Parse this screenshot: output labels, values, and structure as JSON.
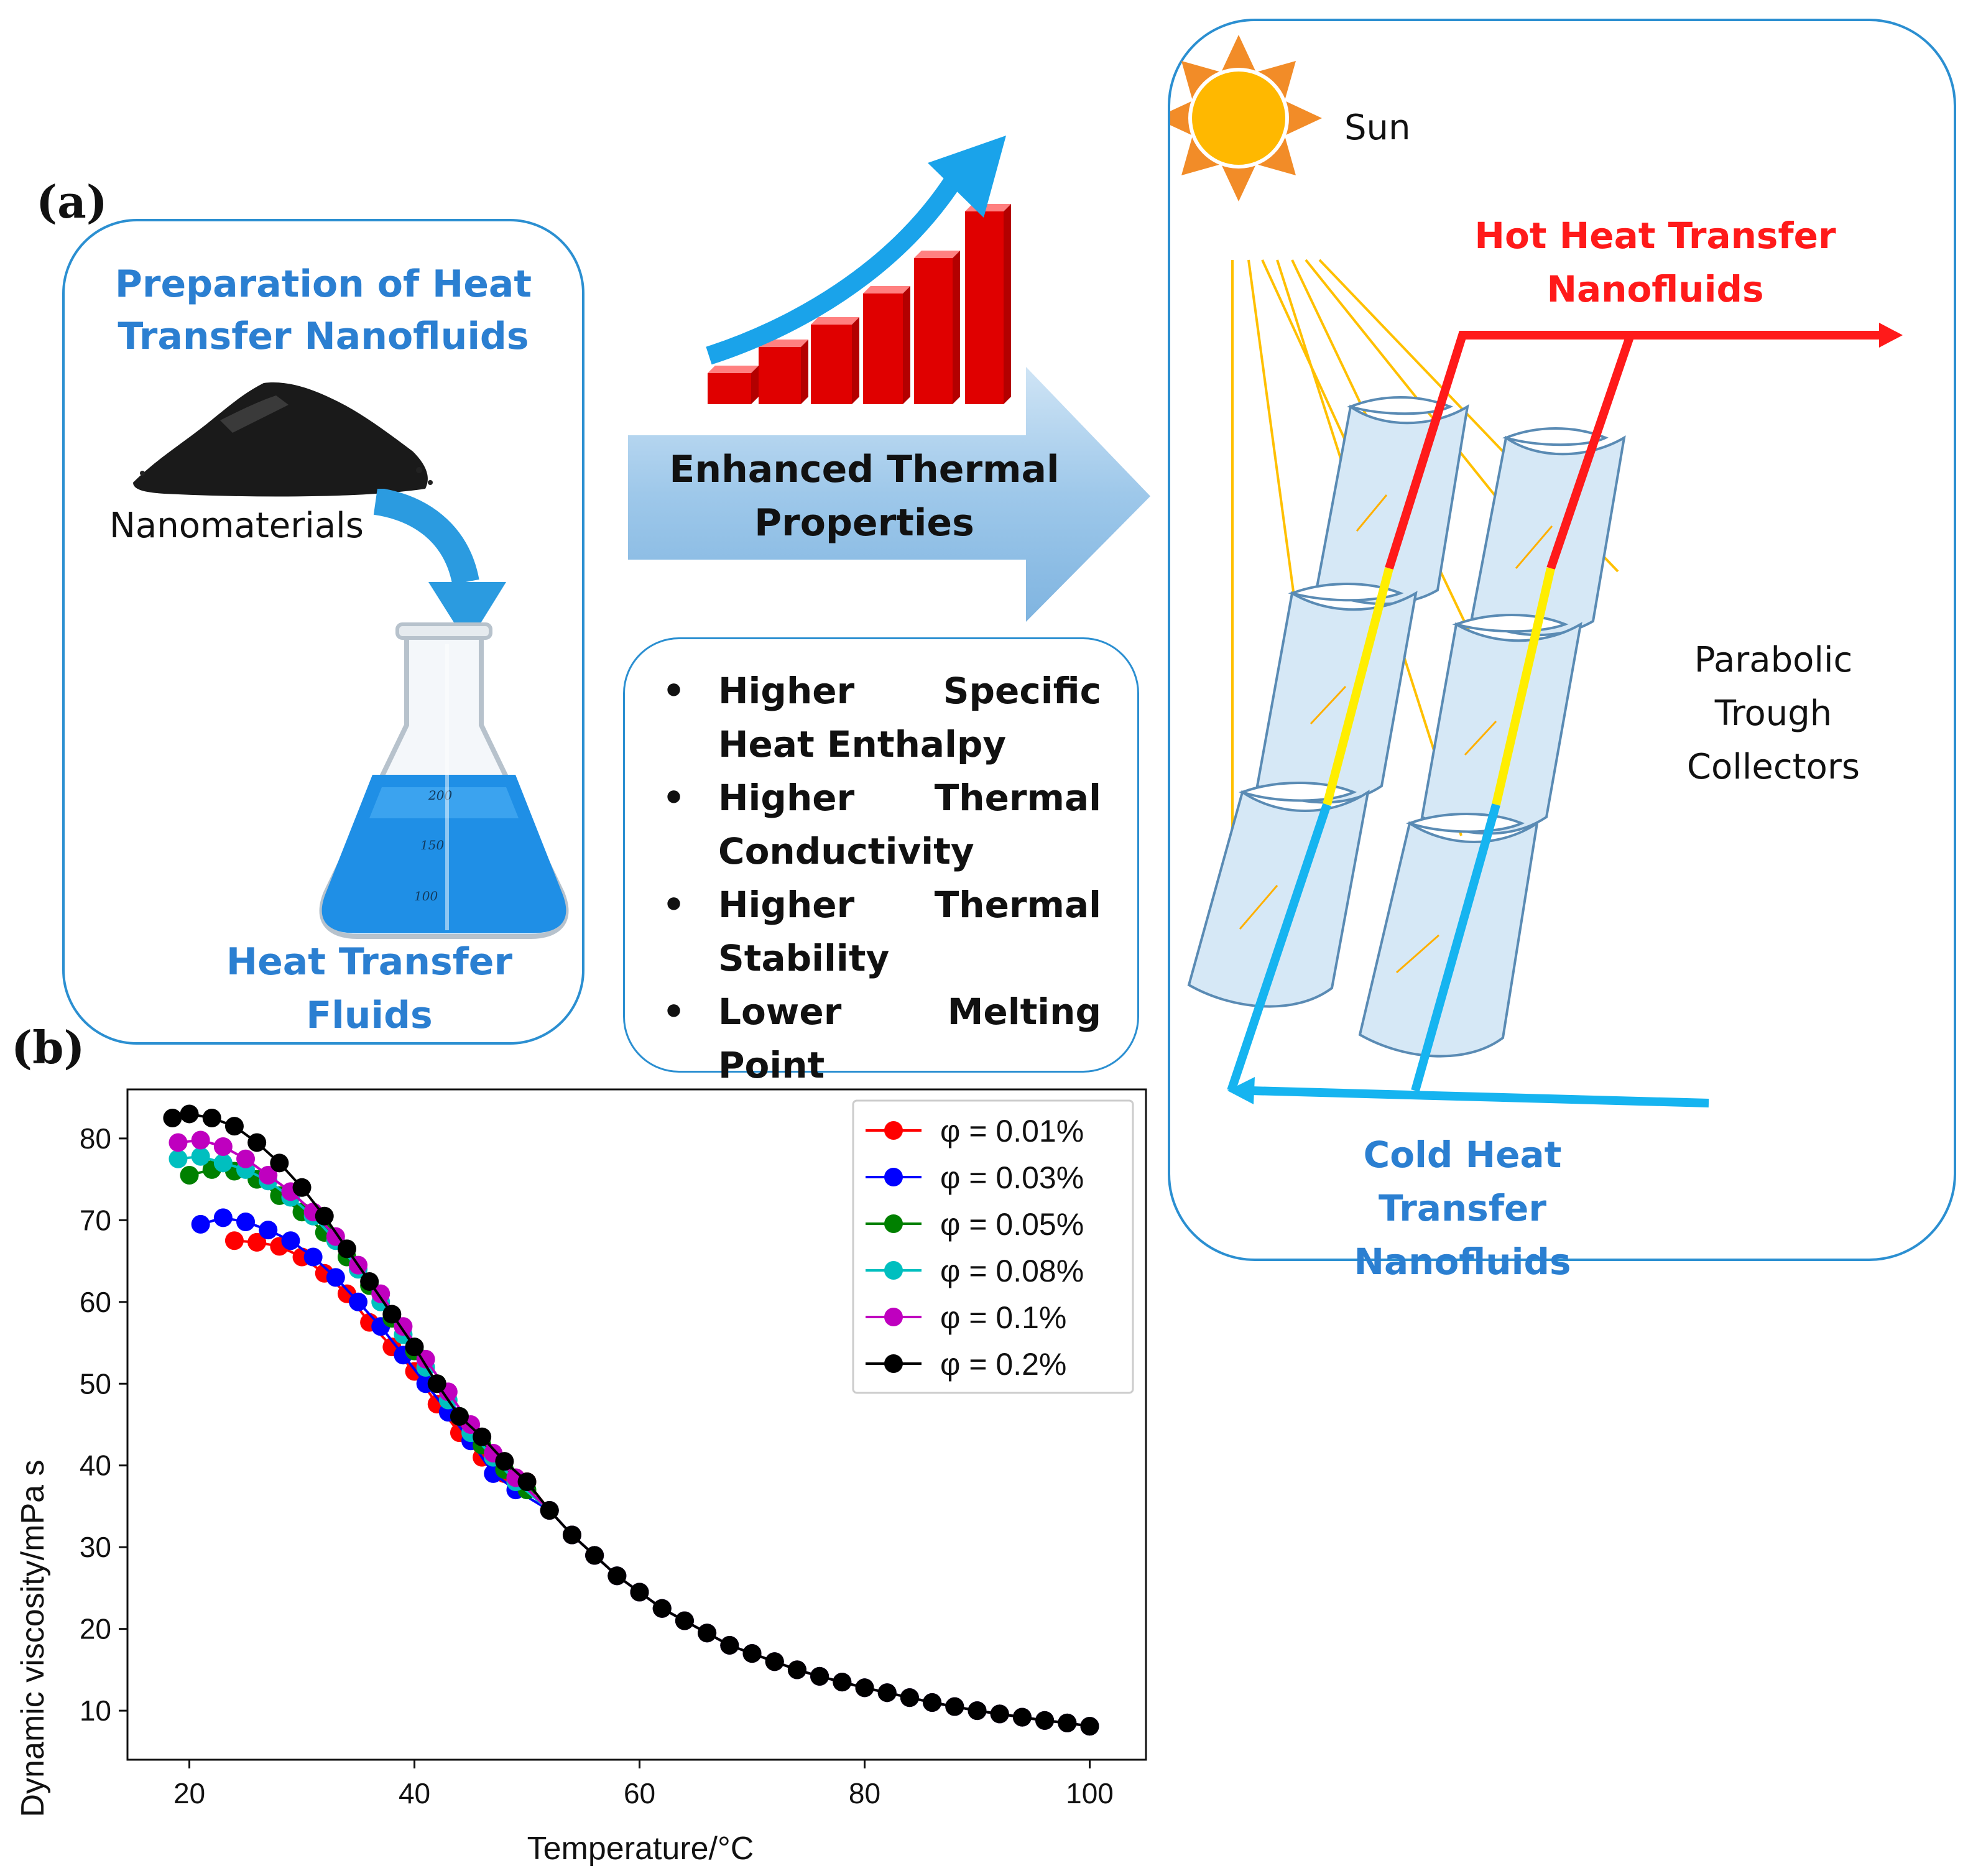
{
  "panel_a": {
    "label": "(a)",
    "preparation_box": {
      "title_line1": "Preparation of Heat",
      "title_line2": "Transfer Nanofluids",
      "nanomaterials_label": "Nanomaterials",
      "flask_marks": [
        "200",
        "150",
        "100"
      ],
      "fluids_label": "Heat Transfer Fluids"
    },
    "arrow_label_line1": "Enhanced Thermal",
    "arrow_label_line2": "Properties",
    "properties": [
      "Higher Specific Heat Enthalpy",
      "Higher Thermal Conductivity",
      "Higher Thermal Stability",
      "Lower Melting Point"
    ],
    "collector_box": {
      "sun_label": "Sun",
      "hot_line1": "Hot Heat Transfer",
      "hot_line2": "Nanofluids",
      "collector_line1": "Parabolic",
      "collector_line2": "Trough",
      "collector_line3": "Collectors",
      "cold_line1": "Cold Heat Transfer",
      "cold_line2": "Nanofluids"
    }
  },
  "panel_b": {
    "label": "(b)"
  },
  "colors": {
    "accent_blue": "#2b7fd1",
    "hot_red": "#ff1a1a",
    "cold_blue": "#16b4f0",
    "pipe_yellow": "#ffee00",
    "collector_fill": "#d6e8f6"
  },
  "chart_data": {
    "type": "line",
    "xlabel": "Temperature/°C",
    "ylabel": "Dynamic viscosity/mPa s",
    "xlim": [
      14.5,
      105
    ],
    "ylim": [
      4,
      86
    ],
    "xticks": [
      20,
      40,
      60,
      80,
      100
    ],
    "yticks": [
      10,
      20,
      30,
      40,
      50,
      60,
      70,
      80
    ],
    "grid": false,
    "legend_position": "top-right",
    "shared_tail": {
      "x": [
        52,
        54,
        56,
        58,
        60,
        62,
        64,
        66,
        68,
        70,
        72,
        74,
        76,
        78,
        80,
        82,
        84,
        86,
        88,
        90,
        92,
        94,
        96,
        98,
        100
      ],
      "y": [
        34.5,
        31.5,
        29,
        26.5,
        24.5,
        22.5,
        21,
        19.5,
        18,
        17,
        16,
        15,
        14.2,
        13.5,
        12.8,
        12.2,
        11.6,
        11,
        10.5,
        10,
        9.6,
        9.2,
        8.8,
        8.5,
        8.1
      ]
    },
    "series": [
      {
        "name": "φ = 0.01%",
        "color": "#ff0000",
        "x": [
          24,
          26,
          28,
          30,
          32,
          34,
          36,
          38,
          40,
          42,
          44,
          46,
          48,
          50
        ],
        "y": [
          67.5,
          67.3,
          66.8,
          65.5,
          63.5,
          61,
          57.5,
          54.5,
          51.5,
          47.5,
          44,
          41,
          39,
          38
        ]
      },
      {
        "name": "φ = 0.03%",
        "color": "#0000ff",
        "x": [
          21,
          23,
          25,
          27,
          29,
          31,
          33,
          35,
          37,
          39,
          41,
          43,
          45,
          47,
          49
        ],
        "y": [
          69.5,
          70.3,
          69.8,
          68.8,
          67.5,
          65.5,
          63,
          60,
          57,
          53.5,
          50,
          46.5,
          43,
          39,
          37
        ]
      },
      {
        "name": "φ = 0.05%",
        "color": "#008000",
        "x": [
          20,
          22,
          24,
          26,
          28,
          30,
          32,
          34,
          36,
          38,
          40,
          42,
          44,
          46,
          48,
          50
        ],
        "y": [
          75.5,
          76.2,
          76,
          75,
          73,
          71,
          68.5,
          65.5,
          62,
          58,
          54,
          50,
          46,
          42.5,
          39.5,
          37
        ]
      },
      {
        "name": "φ = 0.08%",
        "color": "#00bfbf",
        "x": [
          19,
          21,
          23,
          25,
          27,
          29,
          31,
          33,
          35,
          37,
          39,
          41,
          43,
          45,
          47,
          49
        ],
        "y": [
          77.5,
          77.8,
          77,
          76.2,
          74.8,
          72.8,
          70.5,
          67.5,
          64,
          60,
          56,
          52,
          48,
          44,
          41,
          38
        ]
      },
      {
        "name": "φ = 0.1%",
        "color": "#bf00bf",
        "x": [
          19,
          21,
          23,
          25,
          27,
          29,
          31,
          33,
          35,
          37,
          39,
          41,
          43,
          45,
          47,
          49
        ],
        "y": [
          79.5,
          79.8,
          79,
          77.5,
          75.5,
          73.5,
          71,
          68,
          64.5,
          61,
          57,
          53,
          49,
          45,
          41.5,
          38.5
        ]
      },
      {
        "name": "φ = 0.2%",
        "color": "#000000",
        "x": [
          18.5,
          20,
          22,
          24,
          26,
          28,
          30,
          32,
          34,
          36,
          38,
          40,
          42,
          44,
          46,
          48,
          50
        ],
        "y": [
          82.5,
          83,
          82.5,
          81.5,
          79.5,
          77,
          74,
          70.5,
          66.5,
          62.5,
          58.5,
          54.5,
          50,
          46,
          43.5,
          40.5,
          38
        ]
      }
    ]
  }
}
